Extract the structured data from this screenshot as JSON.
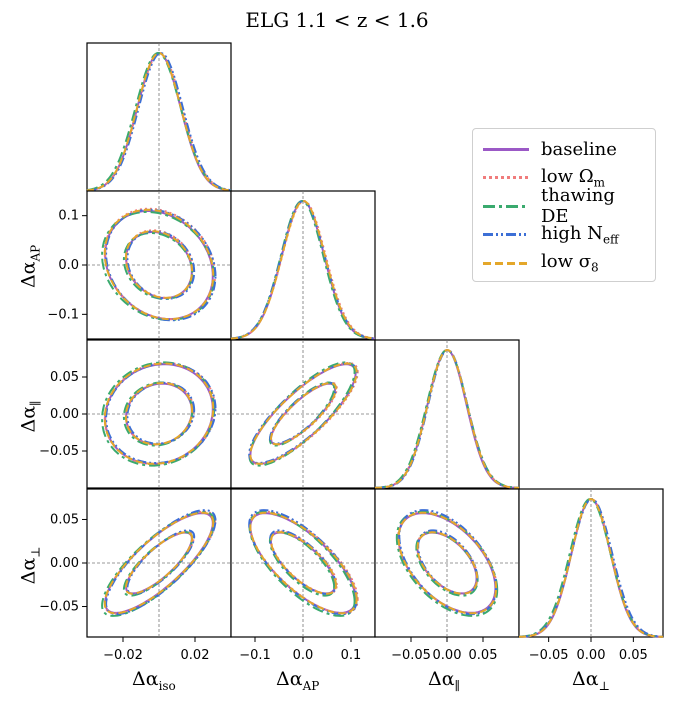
{
  "title": "ELG 1.1 < z < 1.6",
  "colors": {
    "baseline": "#9b59c6",
    "low_omega_m": "#f07c7c",
    "thawing_de": "#3aaa6e",
    "high_neff": "#3c6fd6",
    "low_sigma8": "#e4a72a"
  },
  "legend": {
    "items": [
      {
        "key": "baseline",
        "label": "baseline",
        "sub": ""
      },
      {
        "key": "low_omega_m",
        "label": "low Ω",
        "sub": "m"
      },
      {
        "key": "thawing_de",
        "label": "thawing DE",
        "sub": ""
      },
      {
        "key": "high_neff",
        "label": "high N",
        "sub": "eff"
      },
      {
        "key": "low_sigma8",
        "label": "low σ",
        "sub": "8"
      }
    ]
  },
  "axes": {
    "iso": {
      "symbol": "Δα",
      "sub": "iso",
      "range": [
        -0.04,
        0.04
      ],
      "ticks": [
        -0.02,
        0.02
      ],
      "tick_labels": [
        "−0.02",
        "0.02"
      ]
    },
    "ap": {
      "symbol": "Δα",
      "sub": "AP",
      "range": [
        -0.15,
        0.15
      ],
      "ticks": [
        -0.1,
        0.0,
        0.1
      ],
      "tick_labels": [
        "−0.1",
        "0.0",
        "0.1"
      ]
    },
    "par": {
      "symbol": "Δα",
      "sub": "∥",
      "range": [
        -0.1,
        0.1
      ],
      "ticks": [
        -0.05,
        0.0,
        0.05
      ],
      "tick_labels": [
        "−0.05",
        "0.00",
        "0.05"
      ]
    },
    "perp": {
      "symbol": "Δα",
      "sub": "⊥",
      "range": [
        -0.085,
        0.085
      ],
      "ticks": [
        -0.05,
        0.0,
        0.05
      ],
      "tick_labels": [
        "−0.05",
        "0.00",
        "0.05"
      ]
    }
  },
  "chart_data": {
    "type": "corner",
    "title": "ELG 1.1 < z < 1.6",
    "parameters": [
      "Δα_iso",
      "Δα_AP",
      "Δα_∥",
      "Δα_⊥"
    ],
    "reference_lines": [
      0,
      0,
      0,
      0
    ],
    "contour_levels": [
      "68%",
      "95%"
    ],
    "series": [
      {
        "name": "baseline",
        "style": "solid",
        "means": [
          0.0,
          0.0,
          0.0,
          0.0
        ],
        "sigmas": [
          0.012,
          0.044,
          0.027,
          0.023
        ]
      },
      {
        "name": "low Ω_m",
        "style": "dotted",
        "means": [
          0.0005,
          0.002,
          0.0005,
          0.0005
        ],
        "sigmas": [
          0.0123,
          0.045,
          0.0275,
          0.0235
        ]
      },
      {
        "name": "thawing DE",
        "style": "dashdot",
        "means": [
          -0.0005,
          -0.002,
          0.0,
          -0.001
        ],
        "sigmas": [
          0.0125,
          0.044,
          0.028,
          0.024
        ]
      },
      {
        "name": "high N_eff",
        "style": "dashdotdot",
        "means": [
          0.001,
          0.0,
          0.001,
          0.001
        ],
        "sigmas": [
          0.0122,
          0.045,
          0.027,
          0.024
        ]
      },
      {
        "name": "low σ_8",
        "style": "dashed",
        "means": [
          0.0,
          0.001,
          0.0005,
          0.0
        ],
        "sigmas": [
          0.0121,
          0.0445,
          0.0272,
          0.0232
        ]
      }
    ],
    "correlations": {
      "iso_ap": -0.2,
      "iso_par": 0.1,
      "iso_perp": 0.8,
      "ap_par": 0.82,
      "ap_perp": -0.72,
      "par_perp": -0.5
    }
  }
}
